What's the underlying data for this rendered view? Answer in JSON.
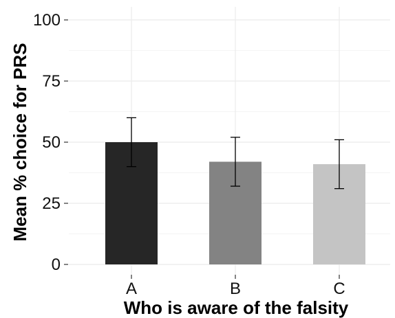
{
  "chart_data": {
    "type": "bar",
    "title": "",
    "xlabel": "Who is aware of the falsity",
    "ylabel": "Mean % choice for PRS",
    "categories": [
      "A",
      "B",
      "C"
    ],
    "values": [
      50,
      42,
      41
    ],
    "error_bars": [
      {
        "low": 40,
        "high": 60
      },
      {
        "low": 32,
        "high": 52
      },
      {
        "low": 31,
        "high": 51
      }
    ],
    "bar_colors": [
      "#262626",
      "#838383",
      "#c4c4c4"
    ],
    "ylim": [
      0,
      100
    ],
    "yticks": [
      0,
      25,
      50,
      75,
      100
    ],
    "grid": true,
    "legend": "none"
  }
}
